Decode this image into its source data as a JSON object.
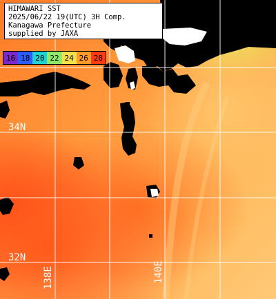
{
  "title_lines": [
    "HIMAWARI SST",
    "2025/06/22 19(UTC) 3H Comp.",
    "Kanagawa Prefecture",
    "supplied by JAXA"
  ],
  "legend": [
    {
      "label": "16",
      "color": "#7a28c8"
    },
    {
      "label": "18",
      "color": "#2a5cff"
    },
    {
      "label": "20",
      "color": "#21d1d0"
    },
    {
      "label": "22",
      "color": "#8fe86a"
    },
    {
      "label": "24",
      "color": "#f6e04a"
    },
    {
      "label": "26",
      "color": "#ff9a2a"
    },
    {
      "label": "28",
      "color": "#ff3a14"
    }
  ],
  "lat_labels": {
    "lat34": "34N",
    "lat32": "32N"
  },
  "lon_labels": {
    "lon138": "138E",
    "lon140": "140E"
  }
}
